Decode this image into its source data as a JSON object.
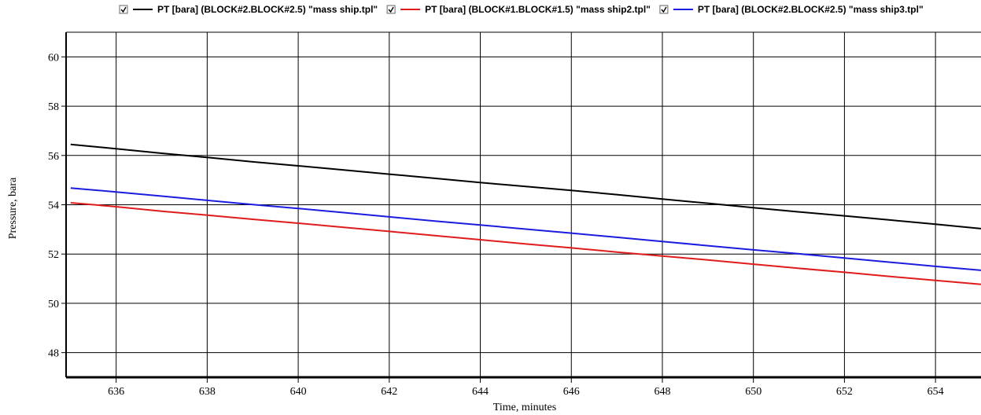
{
  "chart_data": {
    "type": "line",
    "title": "",
    "xlabel": "Time, minutes",
    "ylabel": "Pressure, bara",
    "xlim": [
      634.9,
      655.0
    ],
    "ylim": [
      47.0,
      61.0
    ],
    "x_ticks": [
      636,
      638,
      640,
      642,
      644,
      646,
      648,
      650,
      652,
      654
    ],
    "y_ticks": [
      48,
      50,
      52,
      54,
      56,
      58,
      60
    ],
    "grid": true,
    "legend_position": "top",
    "series": [
      {
        "name": "PT [bara] (BLOCK#2.BLOCK#2.5) \"mass ship.tpl\"",
        "color": "#000000",
        "checked": true,
        "x": [
          635,
          636,
          637,
          638,
          639,
          640,
          641,
          642,
          643,
          644,
          645,
          646,
          647,
          648,
          649,
          650,
          651,
          652,
          653,
          654,
          655
        ],
        "y": [
          56.45,
          56.27,
          56.09,
          55.92,
          55.74,
          55.58,
          55.41,
          55.24,
          55.07,
          54.9,
          54.74,
          54.58,
          54.41,
          54.23,
          54.06,
          53.88,
          53.71,
          53.55,
          53.38,
          53.21,
          53.03
        ]
      },
      {
        "name": "PT [bara] (BLOCK#1.BLOCK#1.5) \"mass ship2.tpl\"",
        "color": "#e01b1b",
        "checked": true,
        "x": [
          635,
          636,
          637,
          638,
          639,
          640,
          641,
          642,
          643,
          644,
          645,
          646,
          647,
          648,
          649,
          650,
          651,
          652,
          653,
          654,
          655
        ],
        "y": [
          54.08,
          53.92,
          53.74,
          53.58,
          53.41,
          53.25,
          53.08,
          52.92,
          52.75,
          52.58,
          52.41,
          52.25,
          52.08,
          51.92,
          51.76,
          51.59,
          51.42,
          51.26,
          51.09,
          50.93,
          50.77
        ]
      },
      {
        "name": "PT [bara] (BLOCK#2.BLOCK#2.5) \"mass ship3.tpl\"",
        "color": "#1c1ce0",
        "checked": true,
        "x": [
          635,
          636,
          637,
          638,
          639,
          640,
          641,
          642,
          643,
          644,
          645,
          646,
          647,
          648,
          649,
          650,
          651,
          652,
          653,
          654,
          655
        ],
        "y": [
          54.68,
          54.52,
          54.35,
          54.18,
          54.01,
          53.85,
          53.68,
          53.51,
          53.34,
          53.18,
          53.01,
          52.85,
          52.68,
          52.51,
          52.34,
          52.17,
          52.01,
          51.84,
          51.67,
          51.5,
          51.34
        ]
      }
    ]
  }
}
